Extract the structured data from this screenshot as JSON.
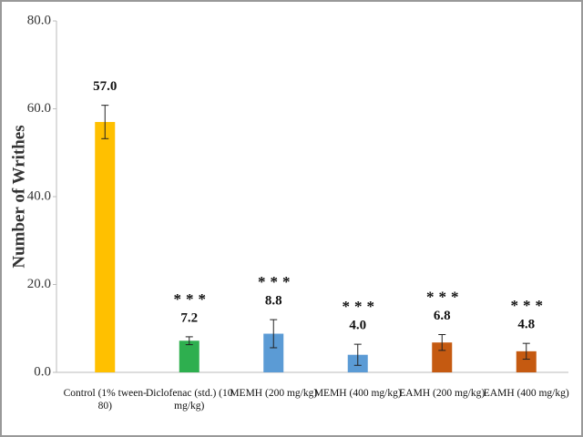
{
  "chart_data": {
    "type": "bar",
    "ylabel": "Number of Writhes",
    "categories": [
      "Control (1% tween-80)",
      "Diclofenac (std.) (10 mg/kg)",
      "MEMH (200 mg/kg)",
      "MEMH (400 mg/kg)",
      "EAMH (200 mg/kg)",
      "EAMH (400 mg/kg)"
    ],
    "values": [
      57.0,
      7.2,
      8.8,
      4.0,
      6.8,
      4.8
    ],
    "value_labels": [
      "57.0",
      "7.2",
      "8.8",
      "4.0",
      "6.8",
      "4.8"
    ],
    "errors": [
      3.8,
      0.9,
      3.2,
      2.4,
      1.8,
      1.8
    ],
    "annotations": [
      null,
      "***",
      "***",
      "***",
      "***",
      "***"
    ],
    "colors": [
      "#ffc000",
      "#2eaf4f",
      "#5b9bd5",
      "#5b9bd5",
      "#c55a11",
      "#c55a11"
    ],
    "ylim": [
      0,
      80
    ],
    "yticks": [
      {
        "value": 0,
        "label": "0.0"
      },
      {
        "value": 20,
        "label": "20.0"
      },
      {
        "value": 40,
        "label": "40.0"
      },
      {
        "value": 60,
        "label": "60.0"
      },
      {
        "value": 80,
        "label": "80.0"
      }
    ]
  }
}
